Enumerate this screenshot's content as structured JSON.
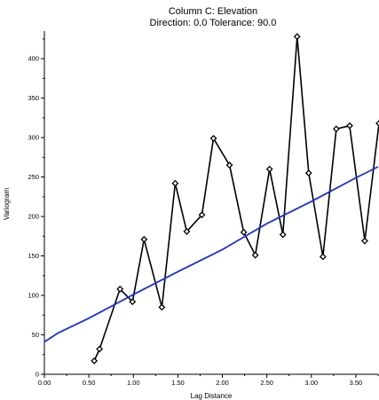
{
  "chart_data": {
    "type": "line",
    "title": "Column C:  Elevation",
    "subtitle": "Direction: 0.0    Tolerance: 90.0",
    "xlabel": "Lag Distance",
    "ylabel": "Variogram",
    "xlim": [
      0,
      3.75
    ],
    "ylim": [
      0,
      435
    ],
    "x_ticks": [
      "0.00",
      "0.50",
      "1.00",
      "1.50",
      "2.00",
      "2.50",
      "3.00",
      "3.50"
    ],
    "y_ticks": [
      "0",
      "50",
      "100",
      "150",
      "200",
      "250",
      "300",
      "350",
      "400"
    ],
    "grid": false,
    "series": [
      {
        "values_x": [
          0.56,
          0.62,
          0.85,
          0.99,
          1.12,
          1.32,
          1.47,
          1.6,
          1.77,
          1.9,
          2.08,
          2.24,
          2.37,
          2.53,
          2.68,
          2.84,
          2.97,
          3.13,
          3.28,
          3.43,
          3.6,
          3.76
        ],
        "values_y": [
          17,
          32,
          108,
          92,
          171,
          85,
          242,
          181,
          202,
          299,
          265,
          180,
          151,
          260,
          177,
          428,
          255,
          149,
          311,
          315,
          169,
          318
        ],
        "color": "#000000",
        "marker": "diamond"
      },
      {
        "values_x": [
          0.0,
          0.15,
          0.5,
          1.0,
          1.5,
          2.0,
          2.5,
          3.0,
          3.5,
          3.75
        ],
        "values_y": [
          41,
          52,
          71,
          101,
          130,
          158,
          191,
          219,
          249,
          263
        ],
        "color": "#1a2fd6",
        "marker": "none"
      }
    ]
  }
}
